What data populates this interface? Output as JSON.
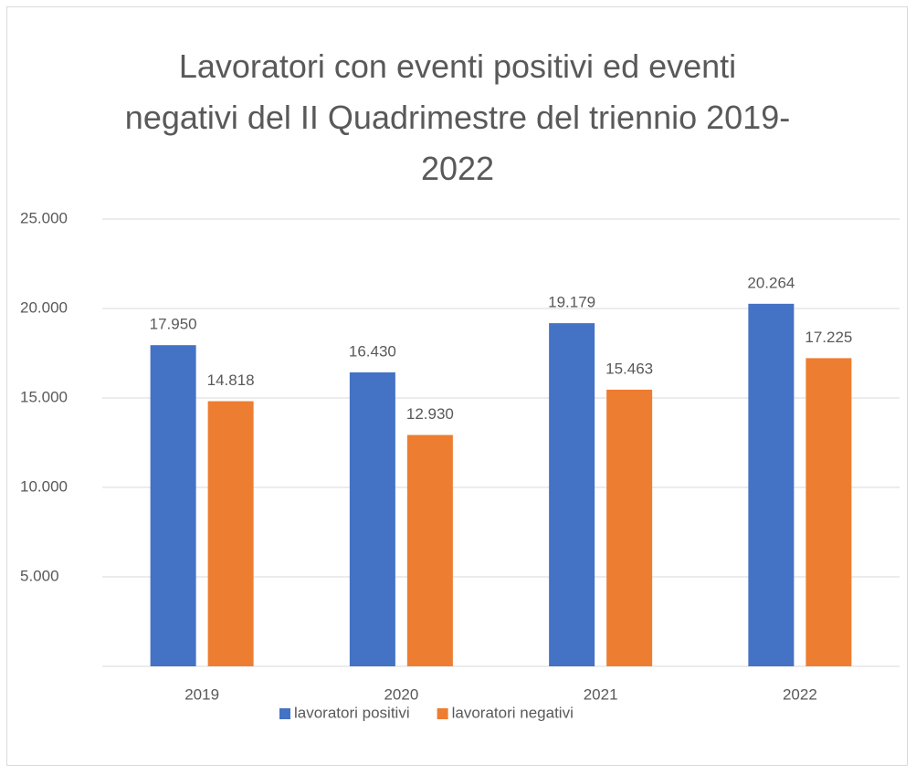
{
  "chart_data": {
    "type": "bar",
    "title": "Lavoratori con eventi positivi ed eventi negativi del II Quadrimestre del triennio 2019-2022",
    "categories": [
      "2019",
      "2020",
      "2021",
      "2022"
    ],
    "series": [
      {
        "name": "lavoratori positivi",
        "color": "#4472c4",
        "values": [
          17950,
          16430,
          19179,
          20264
        ],
        "value_labels": [
          "17.950",
          "16.430",
          "19.179",
          "20.264"
        ]
      },
      {
        "name": "lavoratori negativi",
        "color": "#ed7d31",
        "values": [
          14818,
          12930,
          15463,
          17225
        ],
        "value_labels": [
          "14.818",
          "12.930",
          "15.463",
          "17.225"
        ]
      }
    ],
    "ylim": [
      0,
      25000
    ],
    "yticks": [
      {
        "value": 5000,
        "label": "5.000"
      },
      {
        "value": 10000,
        "label": "10.000"
      },
      {
        "value": 15000,
        "label": "15.000"
      },
      {
        "value": 20000,
        "label": "20.000"
      },
      {
        "value": 25000,
        "label": "25.000"
      }
    ],
    "grid": true,
    "legend": "bottom"
  }
}
